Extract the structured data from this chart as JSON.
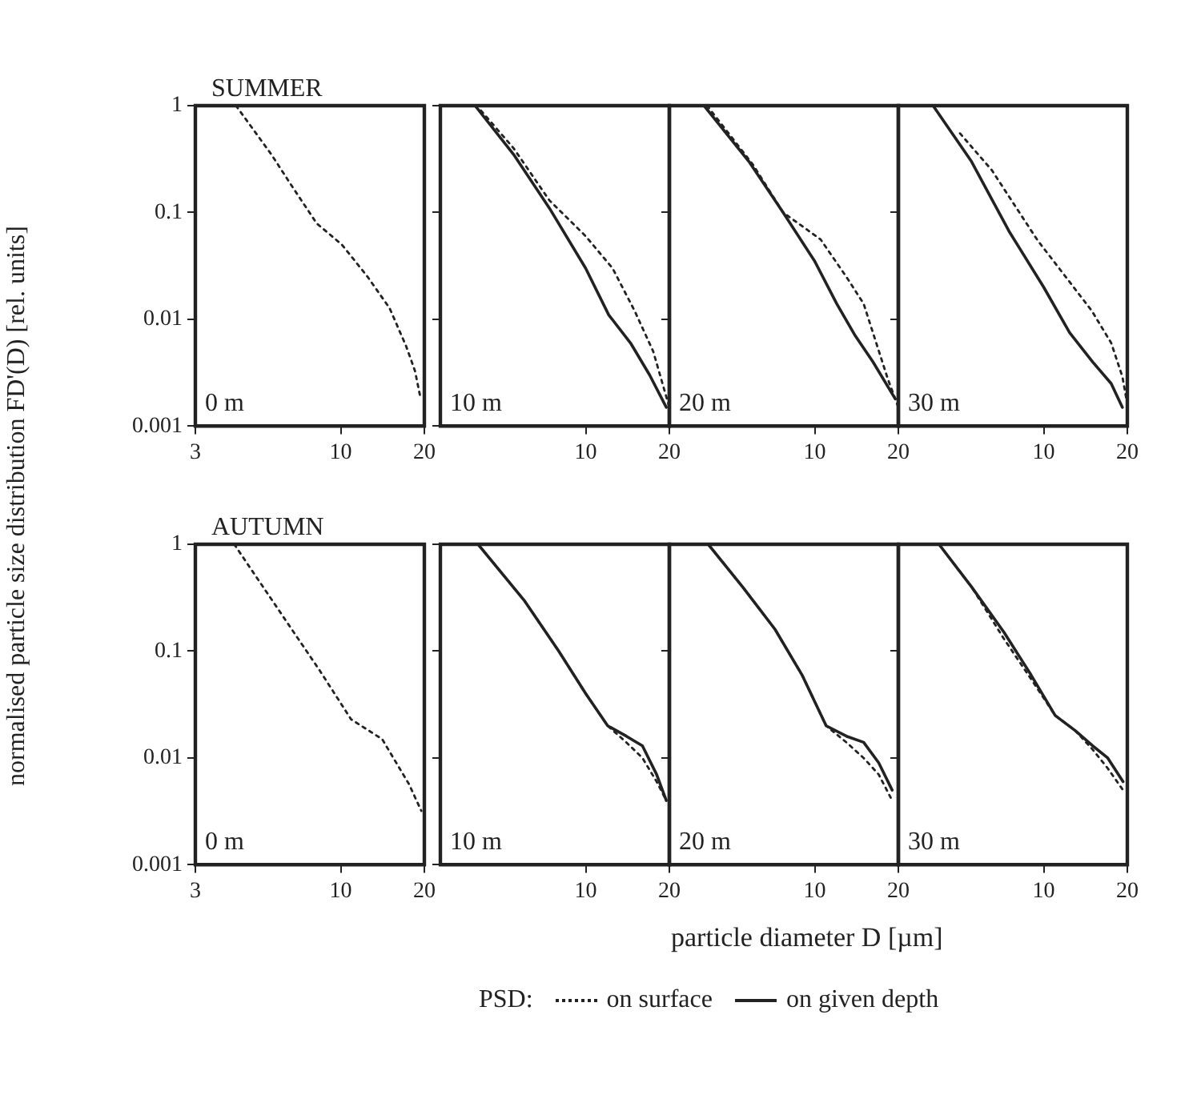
{
  "chart_data": [
    {
      "type": "line",
      "title": "SUMMER",
      "ylabel": "normalised particle size distribution FD'(D) [rel. units]",
      "log": "xy",
      "xlim": [
        3,
        20
      ],
      "ylim": [
        0.001,
        1
      ],
      "xticks": [
        3,
        10,
        20
      ],
      "yticks": [
        0.001,
        0.01,
        0.1,
        1
      ],
      "marker": "none",
      "annotations": [
        "0 m"
      ],
      "series": [
        {
          "color": "#222222",
          "line_style": "dotted",
          "x": [
            4.2,
            5.65,
            6.7,
            8.2,
            10.1,
            12.5,
            15,
            17.2,
            18.5,
            19.4
          ],
          "values": [
            1,
            0.345,
            0.174,
            0.079,
            0.05,
            0.025,
            0.0127,
            0.0056,
            0.0033,
            0.0018
          ]
        }
      ]
    },
    {
      "type": "line",
      "log": "xy",
      "xlim": [
        3,
        20
      ],
      "ylim": [
        0.001,
        1
      ],
      "xticks": [
        10,
        20
      ],
      "yticks": [
        0.001,
        0.01,
        0.1,
        1
      ],
      "tick_labels": "x",
      "marker": "none",
      "annotations": [
        "10 m"
      ],
      "series": [
        {
          "color": "#222222",
          "line_style": "dotted",
          "x": [
            4.2,
            5.5,
            7.4,
            10,
            12.5,
            15,
            17.5,
            20
          ],
          "values": [
            0.9,
            0.4,
            0.13,
            0.06,
            0.03,
            0.012,
            0.005,
            0.0015
          ]
        },
        {
          "color": "#222222",
          "line_style": "solid",
          "x": [
            4.0,
            5.5,
            7.4,
            10,
            12.1,
            14.5,
            17,
            19.5
          ],
          "values": [
            1,
            0.35,
            0.11,
            0.03,
            0.011,
            0.006,
            0.003,
            0.0015
          ]
        }
      ]
    },
    {
      "type": "line",
      "log": "xy",
      "xlim": [
        3,
        20
      ],
      "ylim": [
        0.001,
        1
      ],
      "xticks": [
        10,
        20
      ],
      "yticks": [
        0.001,
        0.01,
        0.1,
        1
      ],
      "tick_labels": "x",
      "marker": "none",
      "annotations": [
        "20 m"
      ],
      "series": [
        {
          "color": "#222222",
          "line_style": "dotted",
          "x": [
            4.1,
            6,
            7.7,
            10.5,
            13,
            15,
            18.3,
            20
          ],
          "values": [
            1,
            0.28,
            0.1,
            0.056,
            0.025,
            0.014,
            0.0028,
            0.0015
          ]
        },
        {
          "color": "#222222",
          "line_style": "solid",
          "x": [
            4.0,
            5.8,
            7.7,
            10,
            12,
            14,
            16.2,
            19.5
          ],
          "values": [
            1,
            0.3,
            0.1,
            0.035,
            0.014,
            0.007,
            0.004,
            0.0018
          ]
        }
      ]
    },
    {
      "type": "line",
      "log": "xy",
      "xlim": [
        3,
        20
      ],
      "ylim": [
        0.001,
        1
      ],
      "xticks": [
        10,
        20
      ],
      "yticks": [
        0.001,
        0.01,
        0.1,
        1
      ],
      "tick_labels": "x",
      "marker": "none",
      "annotations": [
        "30 m"
      ],
      "series": [
        {
          "color": "#222222",
          "line_style": "dotted",
          "x": [
            5.0,
            6.5,
            9.5,
            12,
            14.9,
            17.5,
            19.2,
            20
          ],
          "values": [
            0.55,
            0.25,
            0.055,
            0.025,
            0.012,
            0.006,
            0.0029,
            0.0016
          ]
        },
        {
          "color": "#222222",
          "line_style": "solid",
          "x": [
            4.0,
            5.5,
            7.5,
            10,
            12.4,
            15,
            17.5,
            19.2
          ],
          "values": [
            1,
            0.3,
            0.067,
            0.02,
            0.0075,
            0.004,
            0.0025,
            0.0015
          ]
        }
      ]
    },
    {
      "type": "line",
      "title": "AUTUMN",
      "log": "xy",
      "xlim": [
        3,
        20
      ],
      "ylim": [
        0.001,
        1
      ],
      "xticks": [
        3,
        10,
        20
      ],
      "yticks": [
        0.001,
        0.01,
        0.1,
        1
      ],
      "marker": "none",
      "annotations": [
        "0 m"
      ],
      "series": [
        {
          "color": "#222222",
          "line_style": "dotted",
          "x": [
            4.14,
            6,
            8.4,
            10.9,
            14.1,
            17.6,
            19.5
          ],
          "values": [
            1,
            0.24,
            0.066,
            0.023,
            0.015,
            0.0057,
            0.0032
          ]
        }
      ]
    },
    {
      "type": "line",
      "xlabel": "particle diameter D [µm]",
      "legend_title": "PSD:",
      "legend": "bottom",
      "log": "xy",
      "xlim": [
        3,
        20
      ],
      "ylim": [
        0.001,
        1
      ],
      "xticks": [
        10,
        20
      ],
      "yticks": [
        0.001,
        0.01,
        0.1,
        1
      ],
      "tick_labels": "x",
      "marker": "none",
      "annotations": [
        "10 m"
      ],
      "series": [
        {
          "name": "on surface",
          "color": "#222222",
          "line_style": "dotted",
          "x": [
            4.1,
            6,
            8,
            10,
            12,
            14,
            16,
            18,
            19.5
          ],
          "values": [
            1,
            0.3,
            0.1,
            0.04,
            0.02,
            0.014,
            0.01,
            0.006,
            0.004
          ]
        },
        {
          "name": "on given depth",
          "color": "#222222",
          "line_style": "solid",
          "x": [
            4.1,
            6,
            8,
            10,
            12,
            14,
            16,
            18,
            19.5
          ],
          "values": [
            1,
            0.3,
            0.1,
            0.04,
            0.02,
            0.016,
            0.013,
            0.007,
            0.004
          ]
        }
      ]
    },
    {
      "type": "line",
      "log": "xy",
      "xlim": [
        3,
        20
      ],
      "ylim": [
        0.001,
        1
      ],
      "xticks": [
        10,
        20
      ],
      "yticks": [
        0.001,
        0.01,
        0.1,
        1
      ],
      "tick_labels": "x",
      "marker": "none",
      "annotations": [
        "20 m"
      ],
      "series": [
        {
          "color": "#222222",
          "line_style": "dotted",
          "x": [
            4.14,
            5.5,
            7.2,
            9,
            11,
            13,
            15,
            17,
            19
          ],
          "values": [
            1,
            0.4,
            0.16,
            0.06,
            0.02,
            0.014,
            0.01,
            0.007,
            0.004
          ]
        },
        {
          "color": "#222222",
          "line_style": "solid",
          "x": [
            4.14,
            5.5,
            7.2,
            9,
            11,
            13,
            15,
            17,
            19
          ],
          "values": [
            1,
            0.4,
            0.16,
            0.06,
            0.02,
            0.016,
            0.014,
            0.009,
            0.005
          ]
        }
      ]
    },
    {
      "type": "line",
      "log": "xy",
      "xlim": [
        3,
        20
      ],
      "ylim": [
        0.001,
        1
      ],
      "xticks": [
        10,
        20
      ],
      "yticks": [
        0.001,
        0.01,
        0.1,
        1
      ],
      "tick_labels": "x",
      "marker": "none",
      "annotations": [
        "30 m"
      ],
      "series": [
        {
          "color": "#222222",
          "line_style": "dotted",
          "x": [
            4.2,
            5.5,
            7.2,
            9,
            11,
            13,
            15,
            17,
            19.3
          ],
          "values": [
            1,
            0.4,
            0.13,
            0.055,
            0.025,
            0.018,
            0.012,
            0.008,
            0.005
          ]
        },
        {
          "color": "#222222",
          "line_style": "solid",
          "x": [
            4.2,
            5.5,
            7.2,
            9,
            11,
            13,
            15,
            17,
            19.3
          ],
          "values": [
            1,
            0.4,
            0.15,
            0.06,
            0.025,
            0.018,
            0.013,
            0.01,
            0.006
          ]
        }
      ]
    }
  ]
}
